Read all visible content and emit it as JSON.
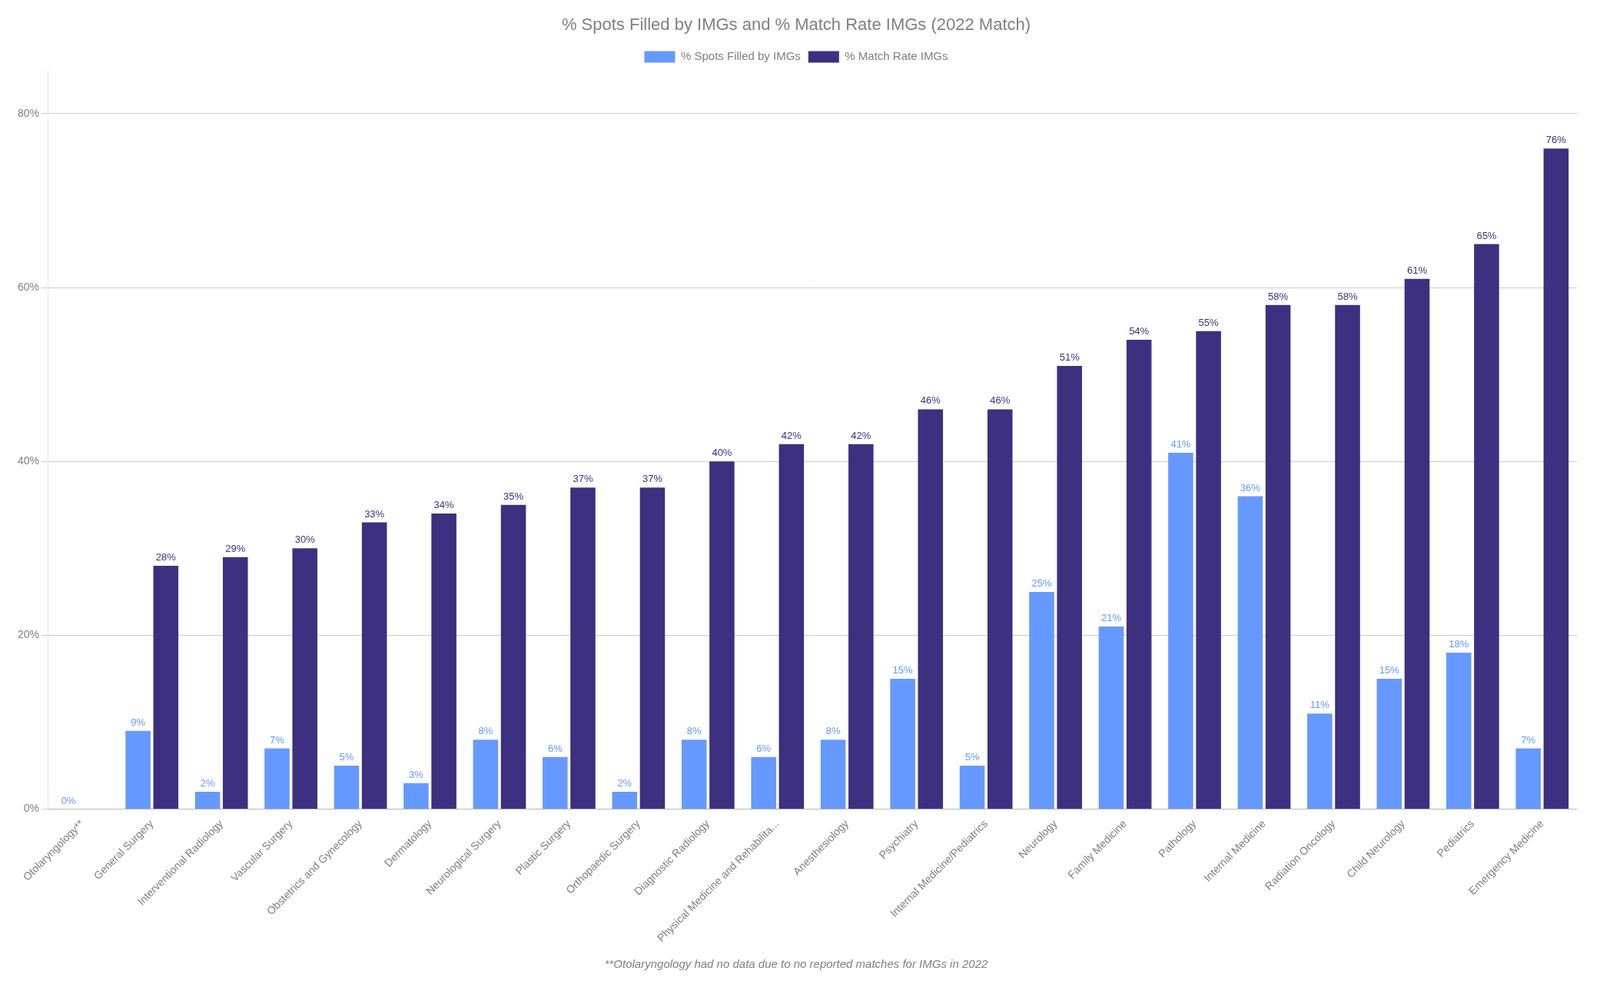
{
  "chart_data": {
    "type": "bar",
    "title": "% Spots Filled by IMGs and % Match Rate IMGs (2022 Match)",
    "categories": [
      "Otolaryngology**",
      "General Surgery",
      "Interventional Radiology",
      "Vascular Surgery",
      "Obstetrics and Gynecology",
      "Dermatology",
      "Neurological Surgery",
      "Plastic Surgery",
      "Orthopaedic Surgery",
      "Diagnostic Radiology",
      "Physical Medicine and Rehabilita...",
      "Anesthesiology",
      "Psychiatry",
      "Internal Medicine/Pediatrics",
      "Neurology",
      "Family Medicine",
      "Pathology",
      "Internal Medicine",
      "Radiation Oncology",
      "Child Neurology",
      "Pediatrics",
      "Emergency Medicine"
    ],
    "series": [
      {
        "name": "% Spots Filled by IMGs",
        "color": "#6699FF",
        "values": [
          0,
          9,
          2,
          7,
          5,
          3,
          8,
          6,
          2,
          8,
          6,
          8,
          15,
          5,
          25,
          21,
          41,
          36,
          11,
          15,
          18,
          7
        ],
        "value_labels": [
          "0%",
          "9%",
          "2%",
          "7%",
          "5%",
          "3%",
          "8%",
          "6%",
          "2%",
          "8%",
          "6%",
          "8%",
          "15%",
          "5%",
          "25%",
          "21%",
          "41%",
          "36%",
          "11%",
          "15%",
          "18%",
          "7%"
        ]
      },
      {
        "name": "% Match Rate IMGs",
        "color": "#3d3080",
        "values": [
          0,
          28,
          29,
          30,
          33,
          34,
          35,
          37,
          37,
          40,
          42,
          42,
          46,
          46,
          51,
          54,
          55,
          58,
          58,
          61,
          65,
          76
        ],
        "value_labels": [
          null,
          "28%",
          "29%",
          "30%",
          "33%",
          "34%",
          "35%",
          "37%",
          "37%",
          "40%",
          "42%",
          "42%",
          "46%",
          "46%",
          "51%",
          "54%",
          "55%",
          "58%",
          "58%",
          "61%",
          "65%",
          "76%"
        ]
      }
    ],
    "footnote": "**Otolaryngology had no data due to no reported matches for IMGs in 2022",
    "ylim": [
      0,
      85
    ],
    "yticks": [
      {
        "value": 0,
        "label": "0%"
      },
      {
        "value": 20,
        "label": "20%"
      },
      {
        "value": 40,
        "label": "40%"
      },
      {
        "value": 60,
        "label": "60%"
      },
      {
        "value": 80,
        "label": "80%"
      }
    ],
    "grid": true,
    "legend": "top",
    "data_labels": true
  }
}
